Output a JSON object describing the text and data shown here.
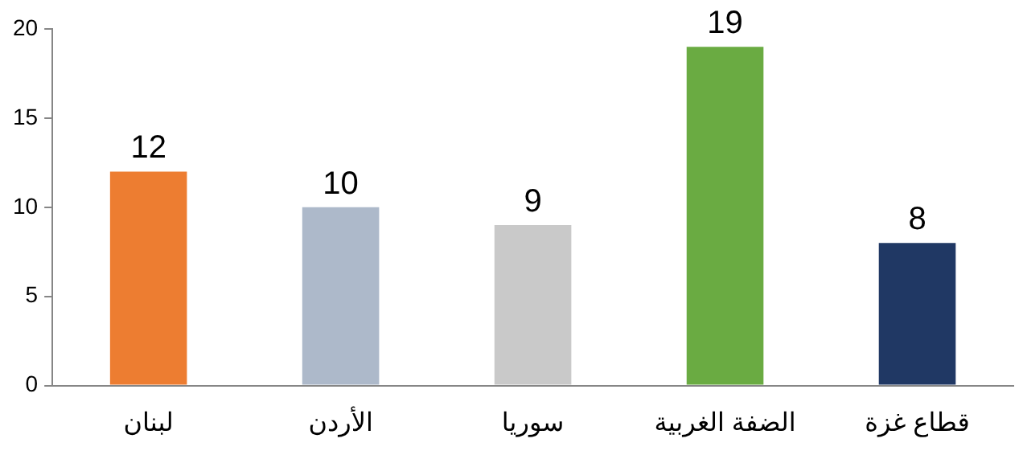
{
  "chart_data": {
    "type": "bar",
    "categories": [
      "لبنان",
      "الأردن",
      "سوريا",
      "الضفة الغربية",
      "قطاع غزة"
    ],
    "values": [
      12,
      10,
      9,
      19,
      8
    ],
    "colors": [
      "#ed7d31",
      "#adb9ca",
      "#c9c9c9",
      "#6aab42",
      "#203864"
    ],
    "ylim": [
      0,
      20
    ],
    "yticks": [
      0,
      5,
      10,
      15,
      20
    ],
    "grid": false,
    "legend": false,
    "data_labels": true
  }
}
